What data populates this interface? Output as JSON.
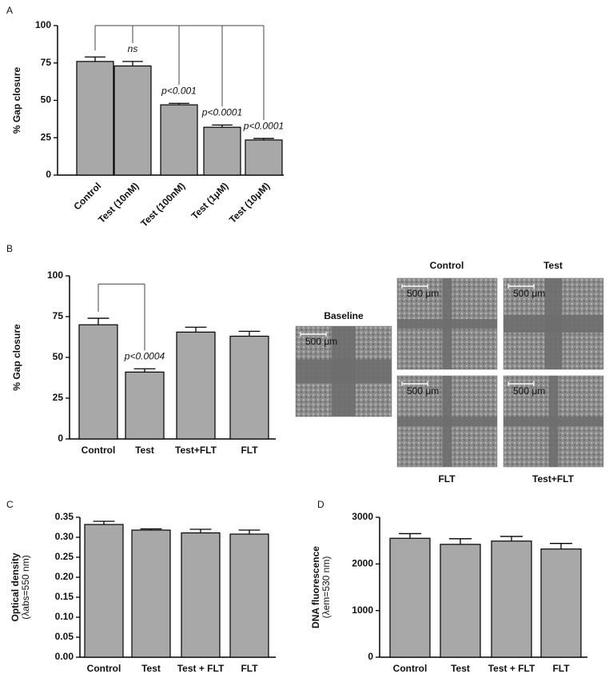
{
  "chart_data": [
    {
      "label": "A",
      "type": "bar",
      "ylabel": [
        "% Gap closure"
      ],
      "categories": [
        "Control",
        "Test (10nM)",
        "Test (100nM)",
        "Test (1μM)",
        "Test (10μM)"
      ],
      "values": [
        76,
        73,
        47,
        32,
        23.5
      ],
      "errors": [
        3,
        3,
        1,
        1.5,
        1
      ],
      "annotations": [
        null,
        "ns",
        "p<0.001",
        "p<0.0001",
        "p<0.0001"
      ],
      "color": "#a8a8a8",
      "ylim": [
        0,
        100
      ],
      "yticks": [
        0,
        25,
        50,
        75,
        100
      ]
    },
    {
      "label": "B",
      "type": "bar",
      "ylabel": [
        "% Gap closure"
      ],
      "categories": [
        "Control",
        "Test",
        "Test+FLT",
        "FLT"
      ],
      "values": [
        70,
        41,
        65.5,
        63
      ],
      "errors": [
        4,
        2,
        3,
        3
      ],
      "annotations": [
        null,
        "p<0.0004",
        null,
        null
      ],
      "color": "#a8a8a8",
      "ylim": [
        0,
        100
      ],
      "yticks": [
        0,
        25,
        50,
        75,
        100
      ]
    },
    {
      "label": "C",
      "type": "bar",
      "ylabel": [
        "Optical density",
        "(λabs=550 nm)"
      ],
      "categories": [
        "Control",
        "Test",
        "Test + FLT",
        "FLT"
      ],
      "values": [
        0.332,
        0.318,
        0.311,
        0.308
      ],
      "errors": [
        0.008,
        0.003,
        0.009,
        0.01
      ],
      "color": "#a8a8a8",
      "ylim": [
        0,
        0.35
      ],
      "yticks": [
        {
          "value": 0,
          "label": "0.00"
        },
        0.05,
        {
          "value": 0.1,
          "label": "0.10"
        },
        0.15,
        {
          "value": 0.2,
          "label": "0.20"
        },
        0.25,
        {
          "value": 0.3,
          "label": "0.30"
        },
        0.35
      ]
    },
    {
      "label": "D",
      "type": "bar",
      "ylabel": [
        "DNA fluorescence",
        "(λem=530 nm)"
      ],
      "categories": [
        "Control",
        "Test",
        "Test + FLT",
        "FLT"
      ],
      "values": [
        2550,
        2420,
        2490,
        2320
      ],
      "errors": [
        100,
        120,
        100,
        120
      ],
      "color": "#a8a8a8",
      "ylim": [
        0,
        3000
      ],
      "yticks": [
        0,
        1000,
        2000,
        3000
      ]
    }
  ],
  "micrographs": {
    "titles": [
      "Baseline",
      "Control",
      "Test",
      "FLT",
      "Test+FLT"
    ],
    "scale_bar": "500 μm"
  }
}
